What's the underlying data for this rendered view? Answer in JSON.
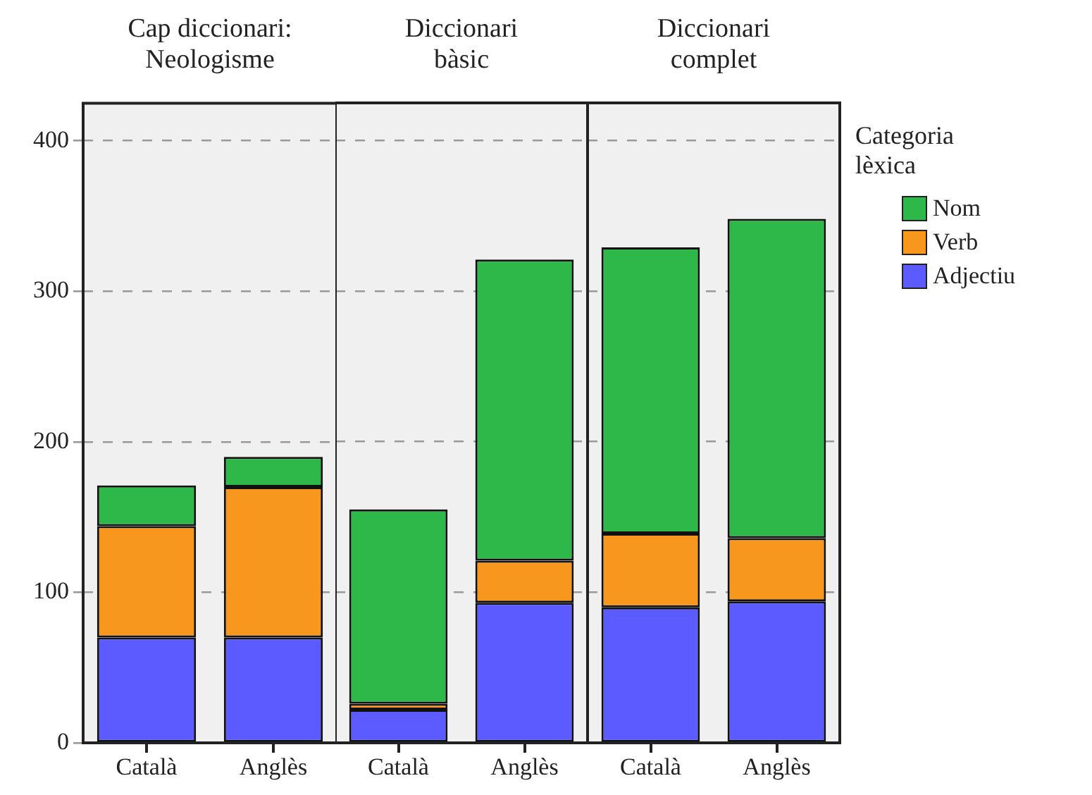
{
  "chart_data": [
    {
      "type": "bar",
      "title": "Cap diccionari: Neologisme",
      "categories": [
        "Català",
        "Anglès"
      ],
      "stacked": true,
      "ylim": [
        0,
        425
      ],
      "yticks": [
        0,
        100,
        200,
        300,
        400
      ],
      "grid": "y",
      "series": [
        {
          "color": "#5b5bff",
          "values": [
            70,
            70
          ]
        },
        {
          "color": "#f7971e",
          "values": [
            74,
            100
          ]
        },
        {
          "color": "#2fb84a",
          "values": [
            27,
            20
          ]
        }
      ]
    },
    {
      "type": "bar",
      "title": "Diccionari bàsic",
      "categories": [
        "Català",
        "Anglès"
      ],
      "stacked": true,
      "ylim": [
        0,
        425
      ],
      "yticks": [
        0,
        100,
        200,
        300,
        400
      ],
      "grid": "y",
      "tick_labels": "x",
      "series": [
        {
          "color": "#5b5bff",
          "values": [
            22,
            93
          ]
        },
        {
          "color": "#f7971e",
          "values": [
            4,
            28
          ]
        },
        {
          "color": "#2fb84a",
          "values": [
            129,
            200
          ]
        }
      ]
    },
    {
      "type": "bar",
      "title": "Diccionari complet",
      "categories": [
        "Català",
        "Anglès"
      ],
      "stacked": true,
      "ylim": [
        0,
        425
      ],
      "yticks": [
        0,
        100,
        200,
        300,
        400
      ],
      "grid": "y",
      "tick_labels": "x",
      "legend": "right",
      "legend_title": "Categoria lèxica",
      "series": [
        {
          "name": "Adjectiu",
          "color": "#5b5bff",
          "values": [
            90,
            94
          ]
        },
        {
          "name": "Verb",
          "color": "#f7971e",
          "values": [
            49,
            42
          ]
        },
        {
          "name": "Nom",
          "color": "#2fb84a",
          "values": [
            190,
            212
          ]
        }
      ]
    }
  ]
}
